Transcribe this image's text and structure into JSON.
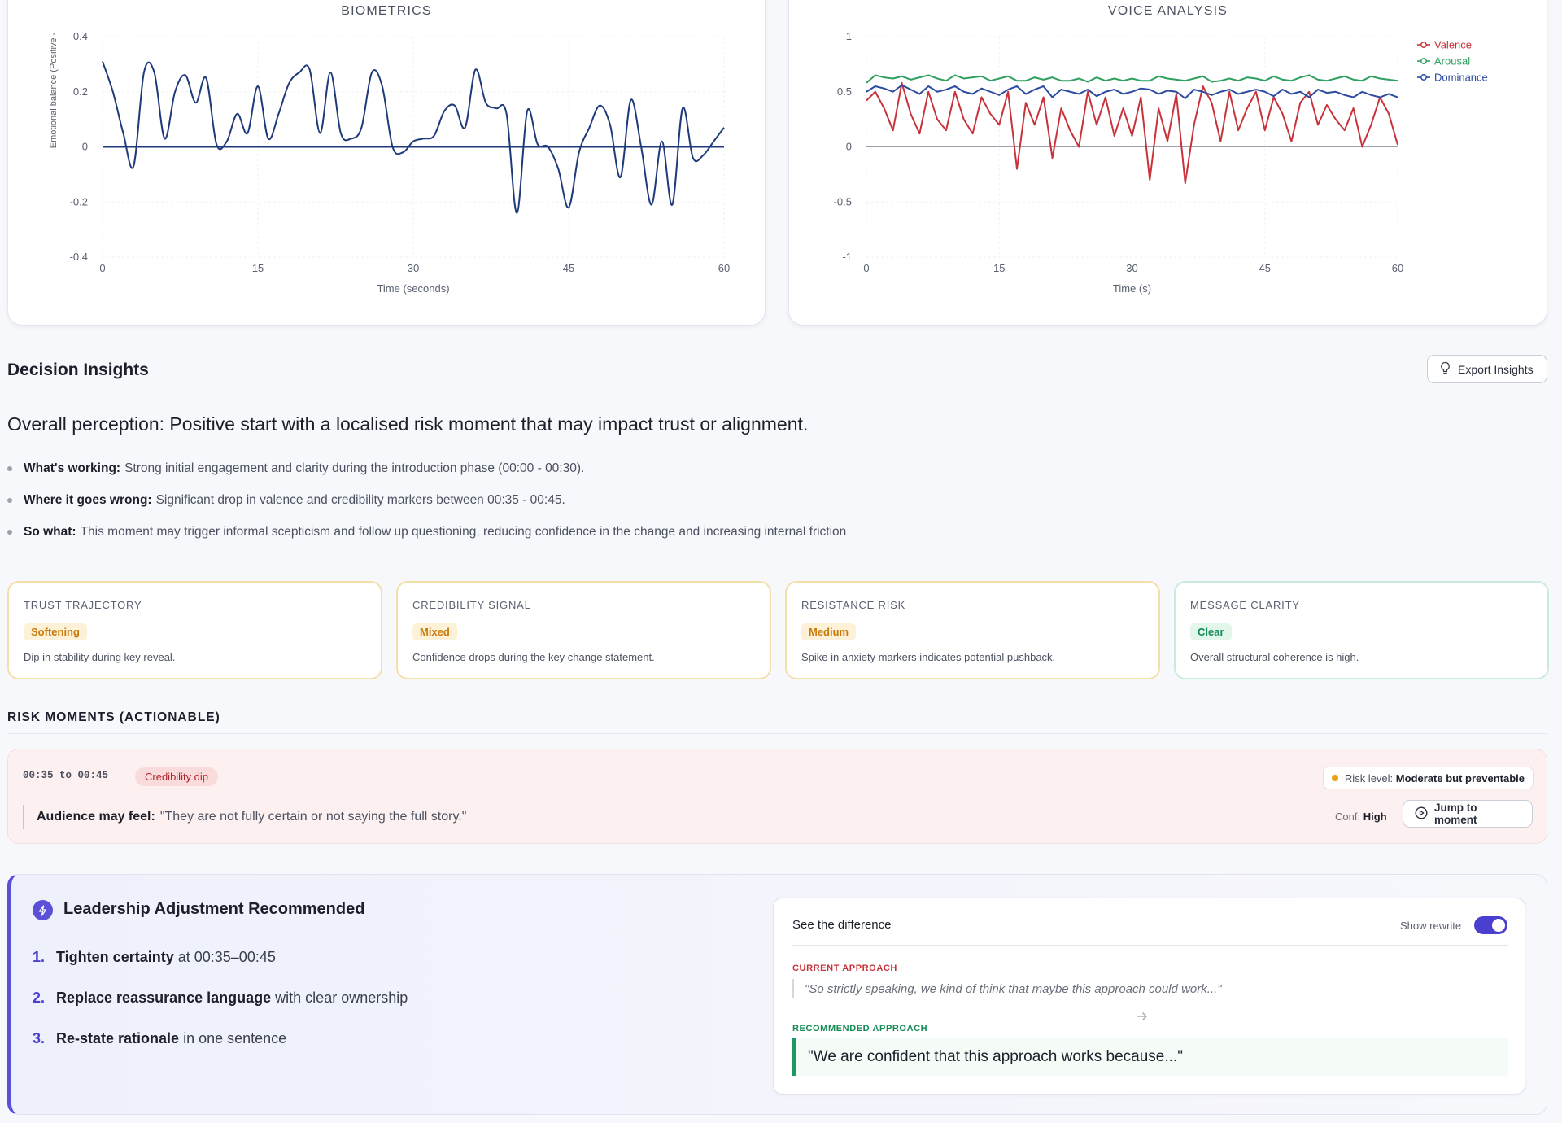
{
  "biometrics": {
    "title": "BIOMETRICS",
    "ylabel": "Emotional balance (Positive -",
    "xlabel": "Time (seconds)"
  },
  "voice": {
    "title": "VOICE ANALYSIS",
    "xlabel": "Time (s)"
  },
  "chart_data": [
    {
      "type": "line",
      "title": "BIOMETRICS",
      "xlabel": "Time (seconds)",
      "ylabel": "Emotional balance (Positive -",
      "xlim": [
        0,
        60
      ],
      "ylim": [
        -0.4,
        0.4
      ],
      "x_ticks": [
        0,
        15,
        30,
        45,
        60
      ],
      "y_ticks": [
        0.4,
        0.2,
        0,
        -0.2,
        -0.4
      ],
      "baseline": 0,
      "x": [
        0,
        1,
        2,
        3,
        4,
        5,
        6,
        7,
        8,
        9,
        10,
        11,
        12,
        13,
        14,
        15,
        16,
        17,
        18,
        19,
        20,
        21,
        22,
        23,
        24,
        25,
        26,
        27,
        28,
        29,
        30,
        31,
        32,
        33,
        34,
        35,
        36,
        37,
        38,
        39,
        40,
        41,
        42,
        43,
        44,
        45,
        46,
        47,
        48,
        49,
        50,
        51,
        52,
        53,
        54,
        55,
        56,
        57,
        58,
        59,
        60
      ],
      "series": [
        {
          "values": [
            0.31,
            0.2,
            0.05,
            -0.07,
            0.27,
            0.27,
            0.03,
            0.2,
            0.26,
            0.16,
            0.25,
            0.01,
            0.02,
            0.12,
            0.05,
            0.22,
            0.03,
            0.12,
            0.23,
            0.27,
            0.28,
            0.05,
            0.27,
            0.05,
            0.03,
            0.07,
            0.27,
            0.22,
            0.0,
            -0.02,
            0.02,
            0.03,
            0.04,
            0.13,
            0.15,
            0.07,
            0.28,
            0.16,
            0.14,
            0.12,
            -0.24,
            0.13,
            0.01,
            0.0,
            -0.08,
            -0.22,
            -0.02,
            0.07,
            0.15,
            0.08,
            -0.11,
            0.17,
            0.0,
            -0.21,
            0.02,
            -0.21,
            0.14,
            -0.04,
            -0.03,
            0.02,
            0.07
          ]
        }
      ]
    },
    {
      "type": "line",
      "title": "VOICE ANALYSIS",
      "xlabel": "Time (s)",
      "xlim": [
        0,
        60
      ],
      "ylim": [
        -1,
        1
      ],
      "x_ticks": [
        0,
        15,
        30,
        45,
        60
      ],
      "y_ticks": [
        1,
        0.5,
        0,
        -0.5,
        -1
      ],
      "legend": "top-right",
      "x": [
        0,
        1,
        2,
        3,
        4,
        5,
        6,
        7,
        8,
        9,
        10,
        11,
        12,
        13,
        14,
        15,
        16,
        17,
        18,
        19,
        20,
        21,
        22,
        23,
        24,
        25,
        26,
        27,
        28,
        29,
        30,
        31,
        32,
        33,
        34,
        35,
        36,
        37,
        38,
        39,
        40,
        41,
        42,
        43,
        44,
        45,
        46,
        47,
        48,
        49,
        50,
        51,
        52,
        53,
        54,
        55,
        56,
        57,
        58,
        59,
        60
      ],
      "series": [
        {
          "name": "Valence",
          "color": "#c8323a",
          "values": [
            0.42,
            0.5,
            0.35,
            0.15,
            0.58,
            0.3,
            0.12,
            0.5,
            0.25,
            0.15,
            0.5,
            0.25,
            0.12,
            0.45,
            0.3,
            0.2,
            0.5,
            -0.2,
            0.4,
            0.2,
            0.45,
            -0.1,
            0.35,
            0.15,
            0.0,
            0.5,
            0.2,
            0.45,
            0.1,
            0.35,
            0.1,
            0.45,
            -0.3,
            0.35,
            0.05,
            0.48,
            -0.33,
            0.2,
            0.55,
            0.4,
            0.05,
            0.5,
            0.15,
            0.35,
            0.5,
            0.15,
            0.45,
            0.3,
            0.05,
            0.4,
            0.5,
            0.2,
            0.38,
            0.25,
            0.15,
            0.35,
            0.0,
            0.2,
            0.45,
            0.3,
            0.02
          ]
        },
        {
          "name": "Arousal",
          "color": "#2fa060",
          "values": [
            0.58,
            0.65,
            0.63,
            0.62,
            0.64,
            0.61,
            0.63,
            0.65,
            0.62,
            0.6,
            0.65,
            0.62,
            0.63,
            0.64,
            0.6,
            0.62,
            0.64,
            0.6,
            0.6,
            0.63,
            0.61,
            0.63,
            0.6,
            0.6,
            0.62,
            0.59,
            0.63,
            0.6,
            0.62,
            0.6,
            0.62,
            0.6,
            0.6,
            0.64,
            0.62,
            0.61,
            0.6,
            0.62,
            0.64,
            0.59,
            0.6,
            0.62,
            0.6,
            0.63,
            0.62,
            0.6,
            0.64,
            0.61,
            0.6,
            0.63,
            0.65,
            0.61,
            0.6,
            0.62,
            0.64,
            0.61,
            0.6,
            0.64,
            0.62,
            0.61,
            0.6
          ]
        },
        {
          "name": "Dominance",
          "color": "#2b4aa0",
          "values": [
            0.5,
            0.55,
            0.53,
            0.5,
            0.56,
            0.52,
            0.48,
            0.55,
            0.5,
            0.52,
            0.55,
            0.5,
            0.48,
            0.53,
            0.5,
            0.47,
            0.52,
            0.55,
            0.48,
            0.52,
            0.55,
            0.45,
            0.52,
            0.5,
            0.48,
            0.52,
            0.46,
            0.5,
            0.52,
            0.48,
            0.5,
            0.53,
            0.52,
            0.48,
            0.51,
            0.5,
            0.44,
            0.52,
            0.5,
            0.47,
            0.5,
            0.52,
            0.48,
            0.5,
            0.52,
            0.5,
            0.46,
            0.52,
            0.48,
            0.5,
            0.45,
            0.52,
            0.49,
            0.5,
            0.47,
            0.45,
            0.5,
            0.47,
            0.45,
            0.48,
            0.45
          ]
        }
      ]
    }
  ],
  "insights": {
    "title": "Decision Insights",
    "export_label": "Export Insights",
    "perception": "Overall perception: Positive start with a localised risk moment that may impact trust or alignment.",
    "bullets": [
      {
        "label": "What's working:",
        "text": "Strong initial engagement and clarity during the introduction phase (00:00 - 00:30)."
      },
      {
        "label": "Where it goes wrong:",
        "text": "Significant drop in valence and credibility markers between 00:35 - 00:45."
      },
      {
        "label": "So what:",
        "text": "This moment may trigger informal scepticism and follow up questioning, reducing confidence in the change and increasing internal friction"
      }
    ]
  },
  "metrics": [
    {
      "label": "TRUST TRAJECTORY",
      "badge": "Softening",
      "desc": "Dip in stability during key reveal.",
      "badge_color": "#c97a0a",
      "badge_bg": "#fdf1d8",
      "border": "#f4deaa"
    },
    {
      "label": "CREDIBILITY SIGNAL",
      "badge": "Mixed",
      "desc": "Confidence drops during the key change statement.",
      "badge_color": "#c97a0a",
      "badge_bg": "#fdf1d8",
      "border": "#f4deaa"
    },
    {
      "label": "RESISTANCE RISK",
      "badge": "Medium",
      "desc": "Spike in anxiety markers indicates potential pushback.",
      "badge_color": "#c97a0a",
      "badge_bg": "#fdf1d8",
      "border": "#f4deaa"
    },
    {
      "label": "MESSAGE CLARITY",
      "badge": "Clear",
      "desc": "Overall structural coherence is high.",
      "badge_color": "#138a55",
      "badge_bg": "#e2f6ec",
      "border": "#c9ebdd"
    }
  ],
  "risk": {
    "heading": "RISK MOMENTS (ACTIONABLE)",
    "time_range": "00:35 to 00:45",
    "tag": "Credibility dip",
    "risk_level_label": "Risk level:",
    "risk_level_value": "Moderate but preventable",
    "feel_label": "Audience may feel:",
    "feel_quote": "\"They are not fully certain or not saying the full story.\"",
    "conf_label": "Conf:",
    "conf_value": "High",
    "jump_label": "Jump to moment"
  },
  "leadership": {
    "title": "Leadership Adjustment Recommended",
    "steps": [
      {
        "num": "1.",
        "bold": "Tighten certainty",
        "rest": "at 00:35–00:45"
      },
      {
        "num": "2.",
        "bold": "Replace reassurance language",
        "rest": "with clear ownership"
      },
      {
        "num": "3.",
        "bold": "Re-state rationale",
        "rest": "in one sentence"
      }
    ]
  },
  "difference": {
    "title": "See the difference",
    "toggle_label": "Show rewrite",
    "toggle_on": true,
    "current_label": "CURRENT APPROACH",
    "current_quote": "\"So strictly speaking, we kind of think that maybe this approach could work...\"",
    "recommended_label": "RECOMMENDED APPROACH",
    "recommended_quote": "\"We are confident that this approach works because...\""
  }
}
